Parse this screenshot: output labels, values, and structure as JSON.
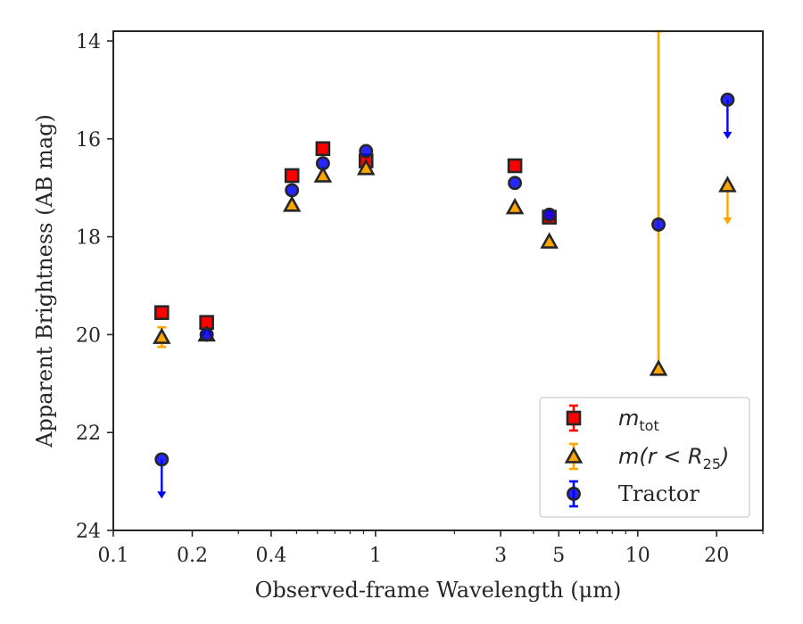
{
  "chart_data": {
    "type": "scatter",
    "title": "",
    "xlabel": "Observed-frame Wavelength (μm)",
    "ylabel": "Apparent Brightness (AB mag)",
    "xscale": "log",
    "xlim": [
      0.1,
      30
    ],
    "ylim": [
      24,
      13.8
    ],
    "y_inverted": true,
    "x_ticks": [
      0.1,
      0.2,
      0.4,
      1,
      3,
      5,
      10,
      20
    ],
    "x_tick_labels": [
      "0.1",
      "0.2",
      "0.4",
      "1",
      "3",
      "5",
      "10",
      "20"
    ],
    "y_ticks": [
      14,
      16,
      18,
      20,
      22,
      24
    ],
    "y_tick_labels": [
      "14",
      "16",
      "18",
      "20",
      "22",
      "24"
    ],
    "grid": false,
    "legend_position": "lower-right",
    "series": [
      {
        "name": "m_tot",
        "label_main": "m",
        "label_sub": "tot",
        "marker": "square",
        "color": "#ff0000",
        "edge_color": "#262626",
        "errcolor": "#ff0000",
        "points": [
          {
            "x": 0.153,
            "y": 19.55
          },
          {
            "x": 0.227,
            "y": 19.75
          },
          {
            "x": 0.48,
            "y": 16.75
          },
          {
            "x": 0.63,
            "y": 16.2
          },
          {
            "x": 0.92,
            "y": 16.45
          },
          {
            "x": 3.4,
            "y": 16.55
          },
          {
            "x": 4.6,
            "y": 17.6
          }
        ]
      },
      {
        "name": "m(r < R25)",
        "label_main": "m(r < R",
        "label_sub": "25",
        "label_tail": ")",
        "marker": "triangle",
        "color": "#ffa500",
        "edge_color": "#262626",
        "errcolor": "#ffa500",
        "points": [
          {
            "x": 0.153,
            "y": 20.05,
            "yerr": 0.2
          },
          {
            "x": 0.227,
            "y": 20.0
          },
          {
            "x": 0.48,
            "y": 17.35
          },
          {
            "x": 0.63,
            "y": 16.75
          },
          {
            "x": 0.92,
            "y": 16.6
          },
          {
            "x": 3.4,
            "y": 17.4
          },
          {
            "x": 4.6,
            "y": 18.1
          },
          {
            "x": 12.0,
            "y": 20.7,
            "yerr_upper": 6.9
          },
          {
            "x": 22.0,
            "y": 16.95,
            "upper_limit": true
          }
        ]
      },
      {
        "name": "Tractor",
        "marker": "circle",
        "color": "#0000ff",
        "edge_color": "#262626",
        "errcolor": "#0000ff",
        "points": [
          {
            "x": 0.153,
            "y": 22.55,
            "upper_limit": true
          },
          {
            "x": 0.227,
            "y": 20.0
          },
          {
            "x": 0.48,
            "y": 17.05
          },
          {
            "x": 0.63,
            "y": 16.5
          },
          {
            "x": 0.92,
            "y": 16.25
          },
          {
            "x": 3.4,
            "y": 16.9
          },
          {
            "x": 4.6,
            "y": 17.55
          },
          {
            "x": 12.0,
            "y": 17.75
          },
          {
            "x": 22.0,
            "y": 15.2,
            "upper_limit": true
          }
        ]
      }
    ]
  }
}
